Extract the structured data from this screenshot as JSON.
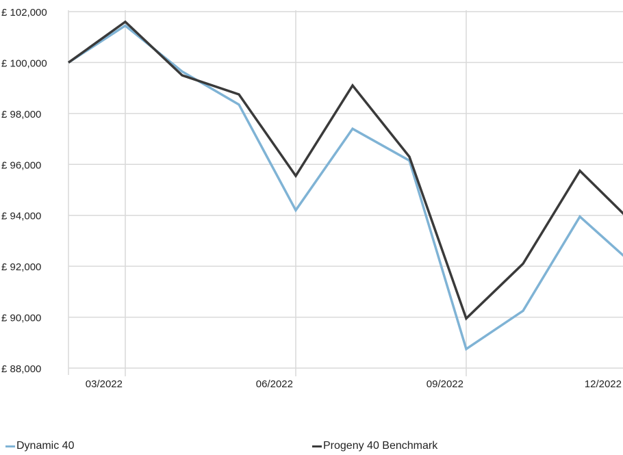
{
  "chart_data": {
    "type": "line",
    "x": [
      "02/2022",
      "03/2022",
      "04/2022",
      "05/2022",
      "06/2022",
      "07/2022",
      "08/2022",
      "09/2022",
      "10/2022",
      "11/2022",
      "12/2022"
    ],
    "x_tick_labels": [
      "03/2022",
      "06/2022",
      "09/2022",
      "12/2022"
    ],
    "ylim": [
      88000,
      102000
    ],
    "y_ticks": [
      88000,
      90000,
      92000,
      94000,
      96000,
      98000,
      100000,
      102000
    ],
    "y_tick_labels": [
      "£ 88,000",
      "£ 90,000",
      "£ 92,000",
      "£ 94,000",
      "£ 96,000",
      "£ 98,000",
      "£ 100,000",
      "£ 102,000"
    ],
    "grid": true,
    "legend_position": "bottom",
    "series": [
      {
        "name": "Dynamic 40",
        "color": "#7fb3d5",
        "values": [
          100000,
          101450,
          99650,
          98350,
          94200,
          97400,
          96150,
          88750,
          90250,
          93950,
          91950
        ]
      },
      {
        "name": "Progeny 40 Benchmark",
        "color": "#3a3a3a",
        "values": [
          100000,
          101600,
          99500,
          98750,
          95550,
          99100,
          96300,
          89950,
          92100,
          95750,
          93550
        ]
      }
    ]
  }
}
